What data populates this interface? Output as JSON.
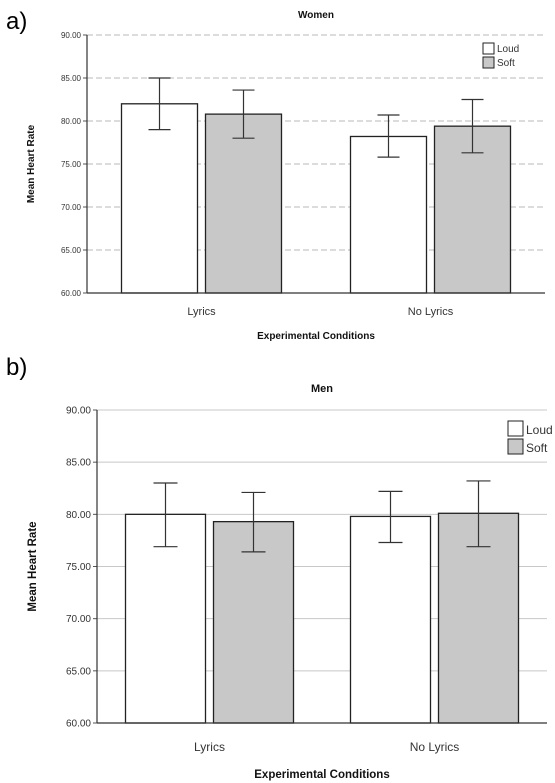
{
  "panels": [
    {
      "letter": "a)"
    },
    {
      "letter": "b)"
    }
  ],
  "chart_data": [
    {
      "type": "bar",
      "title": "Women",
      "xlabel": "Experimental Conditions",
      "ylabel": "Mean Heart Rate",
      "ylim": [
        60,
        90
      ],
      "yticks": [
        "60.00",
        "65.00",
        "70.00",
        "75.00",
        "80.00",
        "85.00",
        "90.00"
      ],
      "categories": [
        "Lyrics",
        "No Lyrics"
      ],
      "series": [
        {
          "name": "Loud",
          "values": [
            82.0,
            78.2
          ],
          "err_low": [
            79.0,
            75.8
          ],
          "err_high": [
            85.0,
            80.7
          ],
          "color": "#ffffff"
        },
        {
          "name": "Soft",
          "values": [
            80.8,
            79.4
          ],
          "err_low": [
            78.0,
            76.3
          ],
          "err_high": [
            83.6,
            82.5
          ],
          "color": "#c8c8c8"
        }
      ],
      "grid": true,
      "legend_position": "top-right"
    },
    {
      "type": "bar",
      "title": "Men",
      "xlabel": "Experimental Conditions",
      "ylabel": "Mean Heart Rate",
      "ylim": [
        60,
        90
      ],
      "yticks": [
        "60.00",
        "65.00",
        "70.00",
        "75.00",
        "80.00",
        "85.00",
        "90.00"
      ],
      "categories": [
        "Lyrics",
        "No Lyrics"
      ],
      "series": [
        {
          "name": "Loud",
          "values": [
            80.0,
            79.8
          ],
          "err_low": [
            76.9,
            77.3
          ],
          "err_high": [
            83.0,
            82.2
          ],
          "color": "#ffffff"
        },
        {
          "name": "Soft",
          "values": [
            79.3,
            80.1
          ],
          "err_low": [
            76.4,
            76.9
          ],
          "err_high": [
            82.1,
            83.2
          ],
          "color": "#c8c8c8"
        }
      ],
      "grid": true,
      "legend_position": "top-right"
    }
  ]
}
